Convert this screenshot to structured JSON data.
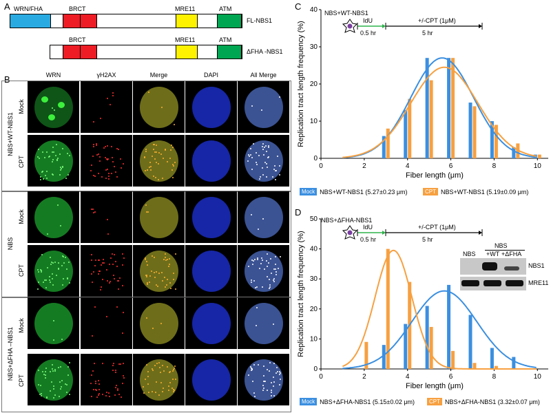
{
  "panelA": {
    "label": "A",
    "fl": {
      "domains": [
        "WRN/FHA",
        "BRCT",
        "MRE11",
        "ATM"
      ],
      "name": "FL-NBS1"
    },
    "dfha": {
      "domains": [
        "BRCT",
        "MRE11",
        "ATM"
      ],
      "name": "ΔFHA -NBS1"
    },
    "colors": {
      "fha": "#29abe2",
      "brct": "#ee1c24",
      "mre11": "#fff200",
      "atm": "#00a651"
    }
  },
  "panelB": {
    "label": "B",
    "columns": [
      "WRN",
      "γH2AX",
      "Merge",
      "DAPI",
      "All Merge"
    ],
    "groups": [
      "NBS+WT-NBS1",
      "NBS",
      "NBS+ΔFHA –NBS1"
    ],
    "rows": [
      "Mock",
      "CPT",
      "Mock",
      "CPT",
      "Mock",
      "CPT"
    ]
  },
  "panelC": {
    "label": "C",
    "title": "NBS+WT-NBS1",
    "schematic": {
      "idu": "IdU",
      "cpt": "+/-CPT (1μM)",
      "t1": "0.5 hr",
      "t2": "5 hr"
    },
    "legend": [
      {
        "tag": "Mock",
        "text": "NBS+WT-NBS1 (5.27±0.23 μm)",
        "color": "#3b8fe0"
      },
      {
        "tag": "CPT",
        "text": "NBS+WT-NBS1 (5.19±0.09 μm)",
        "color": "#f7a040"
      }
    ]
  },
  "panelD": {
    "label": "D",
    "title": "NBS+ΔFHA-NBS1",
    "schematic": {
      "idu": "IdU",
      "cpt": "+/-CPT (1μM)",
      "t1": "0.5 hr",
      "t2": "5 hr"
    },
    "blot": {
      "header": "NBS",
      "col1": "NBS",
      "col2": "+WT",
      "col3": "+ΔFHA",
      "band1": "NBS1",
      "band2": "MRE11"
    },
    "legend": [
      {
        "tag": "Mock",
        "text": "NBS+ΔFHA-NBS1 (5.15±0.02 μm)",
        "color": "#3b8fe0"
      },
      {
        "tag": "CPT",
        "text": "NBS+ΔFHA-NBS1 (3.32±0.07 μm)",
        "color": "#f7a040"
      }
    ]
  },
  "chart_data": [
    {
      "type": "bar",
      "title": "NBS+WT-NBS1",
      "xlabel": "Fiber length (μm)",
      "ylabel": "Replication tract length frequency (%)",
      "xlim": [
        0,
        10.5
      ],
      "ylim": [
        0,
        40
      ],
      "xticks": [
        0,
        2,
        4,
        6,
        8,
        10
      ],
      "yticks": [
        0,
        10,
        20,
        30,
        40
      ],
      "x": [
        1,
        2,
        3,
        4,
        5,
        6,
        7,
        8,
        9,
        10
      ],
      "series": [
        {
          "name": "Mock",
          "color": "#3b8fe0",
          "values": [
            0,
            0,
            6,
            13,
            27,
            27,
            15,
            10,
            3,
            1
          ],
          "fit_mean": 5.6,
          "fit_sd": 1.45,
          "fit_peak": 27
        },
        {
          "name": "CPT",
          "color": "#f7a040",
          "values": [
            0,
            0,
            8,
            16,
            21,
            27,
            14,
            9,
            4,
            1
          ],
          "fit_mean": 5.7,
          "fit_sd": 1.55,
          "fit_peak": 24.5
        }
      ]
    },
    {
      "type": "bar",
      "title": "NBS+ΔFHA-NBS1",
      "xlabel": "Fiber length (μm)",
      "ylabel": "Replication tract length frequency (%)",
      "xlim": [
        0,
        10.5
      ],
      "ylim": [
        0,
        50
      ],
      "xticks": [
        0,
        2,
        4,
        6,
        8,
        10
      ],
      "yticks": [
        0,
        10,
        20,
        30,
        40,
        50
      ],
      "x": [
        1,
        2,
        3,
        4,
        5,
        6,
        7,
        8,
        9,
        10
      ],
      "series": [
        {
          "name": "Mock",
          "color": "#3b8fe0",
          "values": [
            0,
            0,
            8,
            15,
            21,
            28,
            18,
            7,
            4,
            0
          ],
          "fit_mean": 5.7,
          "fit_sd": 1.5,
          "fit_peak": 26
        },
        {
          "name": "CPT",
          "color": "#f7a040",
          "values": [
            0,
            9,
            40,
            29,
            14,
            6,
            2,
            1,
            0,
            0
          ],
          "fit_mean": 3.35,
          "fit_sd": 0.85,
          "fit_peak": 39.5
        }
      ]
    }
  ]
}
